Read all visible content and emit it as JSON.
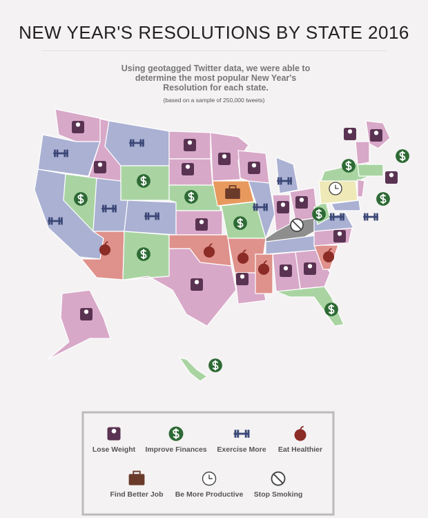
{
  "header": {
    "title": "NEW YEAR'S RESOLUTIONS BY STATE 2016",
    "subtitle": "Using geotagged Twitter data, we were able to determine the most popular New Year's Resolution for each state.",
    "note": "(based on a sample of 250,000 tweets)"
  },
  "legend": {
    "items": [
      "Lose Weight",
      "Improve Finances",
      "Exercise More",
      "Eat Healthier",
      "Find Better Job",
      "Be More Productive",
      "Stop Smoking"
    ]
  }
}
